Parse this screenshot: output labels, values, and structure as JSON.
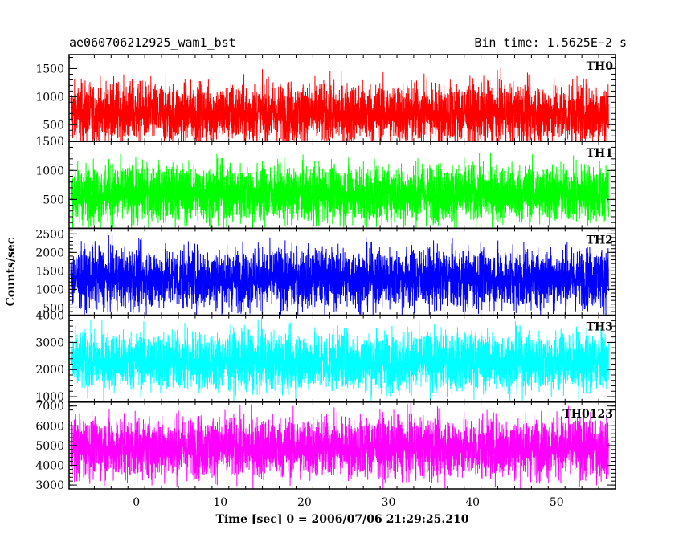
{
  "header": {
    "left_title": "ae060706212925_wam1_bst",
    "right_title": "Bin time: 1.5625E−2 s"
  },
  "chart_data": {
    "type": "line",
    "title": "ae060706212925_wam1_bst",
    "subtitle": "Bin time: 1.5625E−2 s",
    "xlabel": "Time [sec] 0 = 2006/07/06 21:29:25.210",
    "ylabel": "Counts/sec",
    "xlim": [
      -8,
      57
    ],
    "x_ticks": [
      0,
      10,
      20,
      30,
      40,
      50
    ],
    "x_data_range": [
      -7.8,
      56.2
    ],
    "bin_time": 0.015625,
    "grid": false,
    "panels": [
      {
        "name": "TH0",
        "color": "#ff0000",
        "ylim": [
          200,
          1750
        ],
        "y_ticks": [
          500,
          1000,
          1500
        ],
        "mean": 700,
        "typical_range": [
          200,
          1600
        ],
        "spike_max": 1750
      },
      {
        "name": "TH1",
        "color": "#00ff00",
        "ylim": [
          0,
          1500
        ],
        "y_ticks": [
          500,
          1000,
          1500
        ],
        "mean": 600,
        "typical_range": [
          100,
          1400
        ],
        "spike_max": 1500
      },
      {
        "name": "TH2",
        "color": "#0000ff",
        "ylim": [
          300,
          2650
        ],
        "y_ticks": [
          500,
          1000,
          1500,
          2000,
          2500
        ],
        "mean": 1300,
        "typical_range": [
          400,
          2500
        ],
        "spike_max": 2650
      },
      {
        "name": "TH3",
        "color": "#00ffff",
        "ylim": [
          800,
          4000
        ],
        "y_ticks": [
          1000,
          2000,
          3000,
          4000
        ],
        "mean": 2300,
        "typical_range": [
          1000,
          3800
        ],
        "spike_max": 4000
      },
      {
        "name": "TH0123",
        "color": "#ff00ff",
        "ylim": [
          2800,
          7200
        ],
        "y_ticks": [
          3000,
          4000,
          5000,
          6000,
          7000
        ],
        "mean": 4900,
        "typical_range": [
          3000,
          7000
        ],
        "spike_max": 7200
      }
    ]
  }
}
